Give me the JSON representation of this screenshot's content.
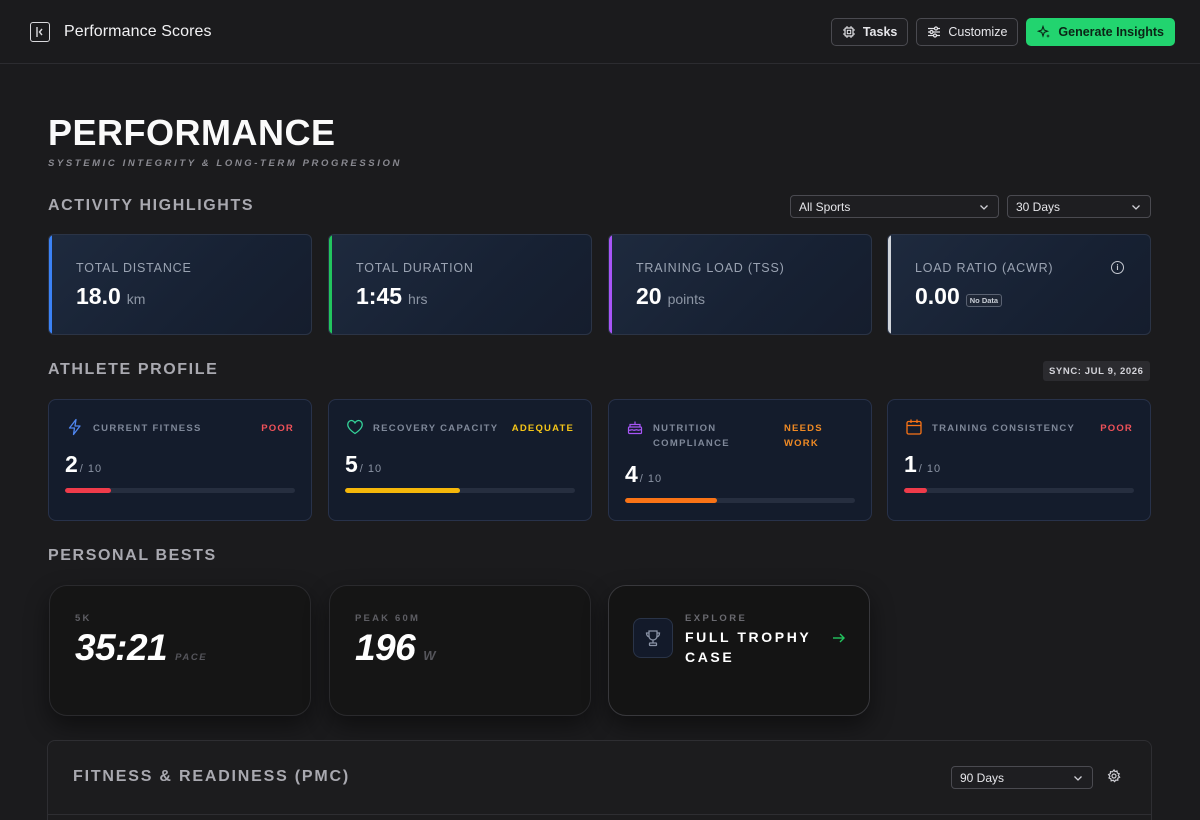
{
  "header": {
    "title": "Performance Scores",
    "tasks_label": "Tasks",
    "customize_label": "Customize",
    "generate_label": "Generate Insights"
  },
  "page": {
    "title": "PERFORMANCE",
    "subtitle": "SYSTEMIC INTEGRITY & LONG-TERM PROGRESSION"
  },
  "highlights": {
    "heading": "ACTIVITY HIGHLIGHTS",
    "sport_filter": "All Sports",
    "range_filter": "30 Days",
    "cards": [
      {
        "label": "TOTAL DISTANCE",
        "value": "18.0",
        "unit": "km",
        "accent": "#3b82f6"
      },
      {
        "label": "TOTAL DURATION",
        "value": "1:45",
        "unit": "hrs",
        "accent": "#22c55e"
      },
      {
        "label": "TRAINING LOAD (TSS)",
        "value": "20",
        "unit": "points",
        "accent": "#a855f7"
      },
      {
        "label": "LOAD RATIO (ACWR)",
        "value": "0.00",
        "badge": "No Data",
        "accent": "#d1d5db"
      }
    ]
  },
  "profile": {
    "heading": "ATHLETE PROFILE",
    "sync": "SYNC: JUL 9, 2026",
    "cards": [
      {
        "label": "CURRENT FITNESS",
        "status": "POOR",
        "status_color": "#f0525a",
        "score": "2",
        "denominator": "/ 10",
        "level": 0.2,
        "bar_color": "#ef3b4a",
        "icon": "lightning-icon"
      },
      {
        "label": "RECOVERY CAPACITY",
        "status": "ADEQUATE",
        "status_color": "#f5c518",
        "score": "5",
        "denominator": "/ 10",
        "level": 0.5,
        "bar_color": "#f5b70a",
        "icon": "heart-icon"
      },
      {
        "label_line1": "NUTRITION",
        "label_line2": "COMPLIANCE",
        "status_line1": "NEEDS",
        "status_line2": "WORK",
        "status_color": "#f08a24",
        "score": "4",
        "denominator": "/ 10",
        "level": 0.4,
        "bar_color": "#f97316",
        "icon": "cake-icon"
      },
      {
        "label": "TRAINING CONSISTENCY",
        "status": "POOR",
        "status_color": "#f0525a",
        "score": "1",
        "denominator": "/ 10",
        "level": 0.1,
        "bar_color": "#ef3b4a",
        "icon": "calendar-icon"
      }
    ]
  },
  "bests": {
    "heading": "PERSONAL BESTS",
    "cards": [
      {
        "label": "5K",
        "value": "35:21",
        "unit": "PACE"
      },
      {
        "label": "PEAK 60M",
        "value": "196",
        "unit": "W"
      }
    ],
    "trophy": {
      "explore": "EXPLORE",
      "title": "FULL TROPHY CASE"
    }
  },
  "pmc": {
    "title": "FITNESS & READINESS (PMC)",
    "range": "90 Days"
  }
}
